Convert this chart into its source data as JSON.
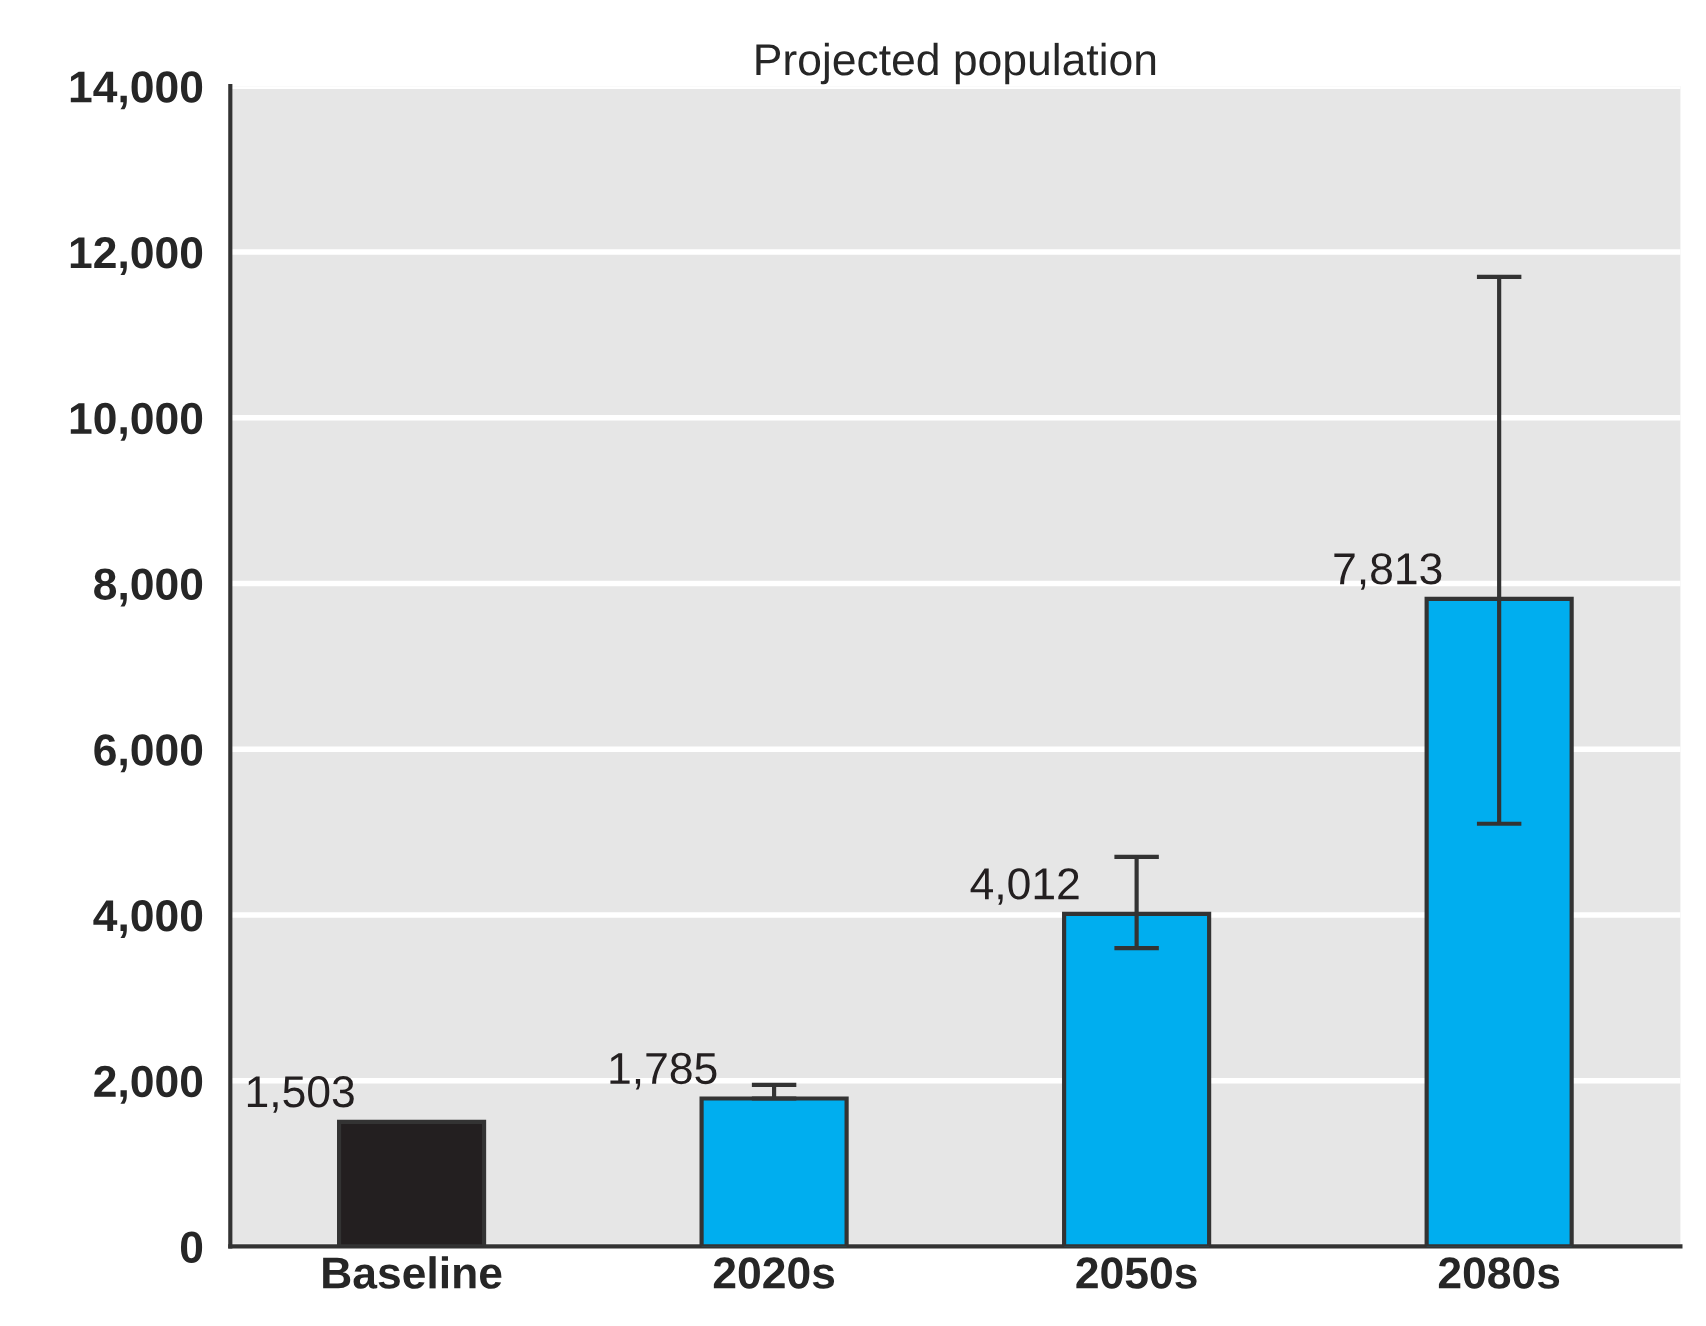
{
  "chart_data": {
    "type": "bar",
    "title": "Projected population",
    "categories": [
      "Baseline",
      "2020s",
      "2050s",
      "2080s"
    ],
    "values": [
      1503,
      1785,
      4012,
      7813
    ],
    "colors": [
      "#231f20",
      "#00aeef",
      "#00aeef",
      "#00aeef"
    ],
    "errors": [
      null,
      [
        1785,
        1950
      ],
      [
        3600,
        4700
      ],
      [
        5100,
        11700
      ]
    ],
    "value_labels": [
      "1,503",
      "1,785",
      "4,012",
      "7,813"
    ],
    "ylim": [
      0,
      14000
    ],
    "yticks": [
      {
        "value": 0,
        "label": "0"
      },
      {
        "value": 2000,
        "label": "2,000"
      },
      {
        "value": 4000,
        "label": "4,000"
      },
      {
        "value": 6000,
        "label": "6,000"
      },
      {
        "value": 8000,
        "label": "8,000"
      },
      {
        "value": 10000,
        "label": "10,000"
      },
      {
        "value": 12000,
        "label": "12,000"
      },
      {
        "value": 14000,
        "label": "14,000"
      }
    ],
    "grid": "y",
    "legend": false
  }
}
